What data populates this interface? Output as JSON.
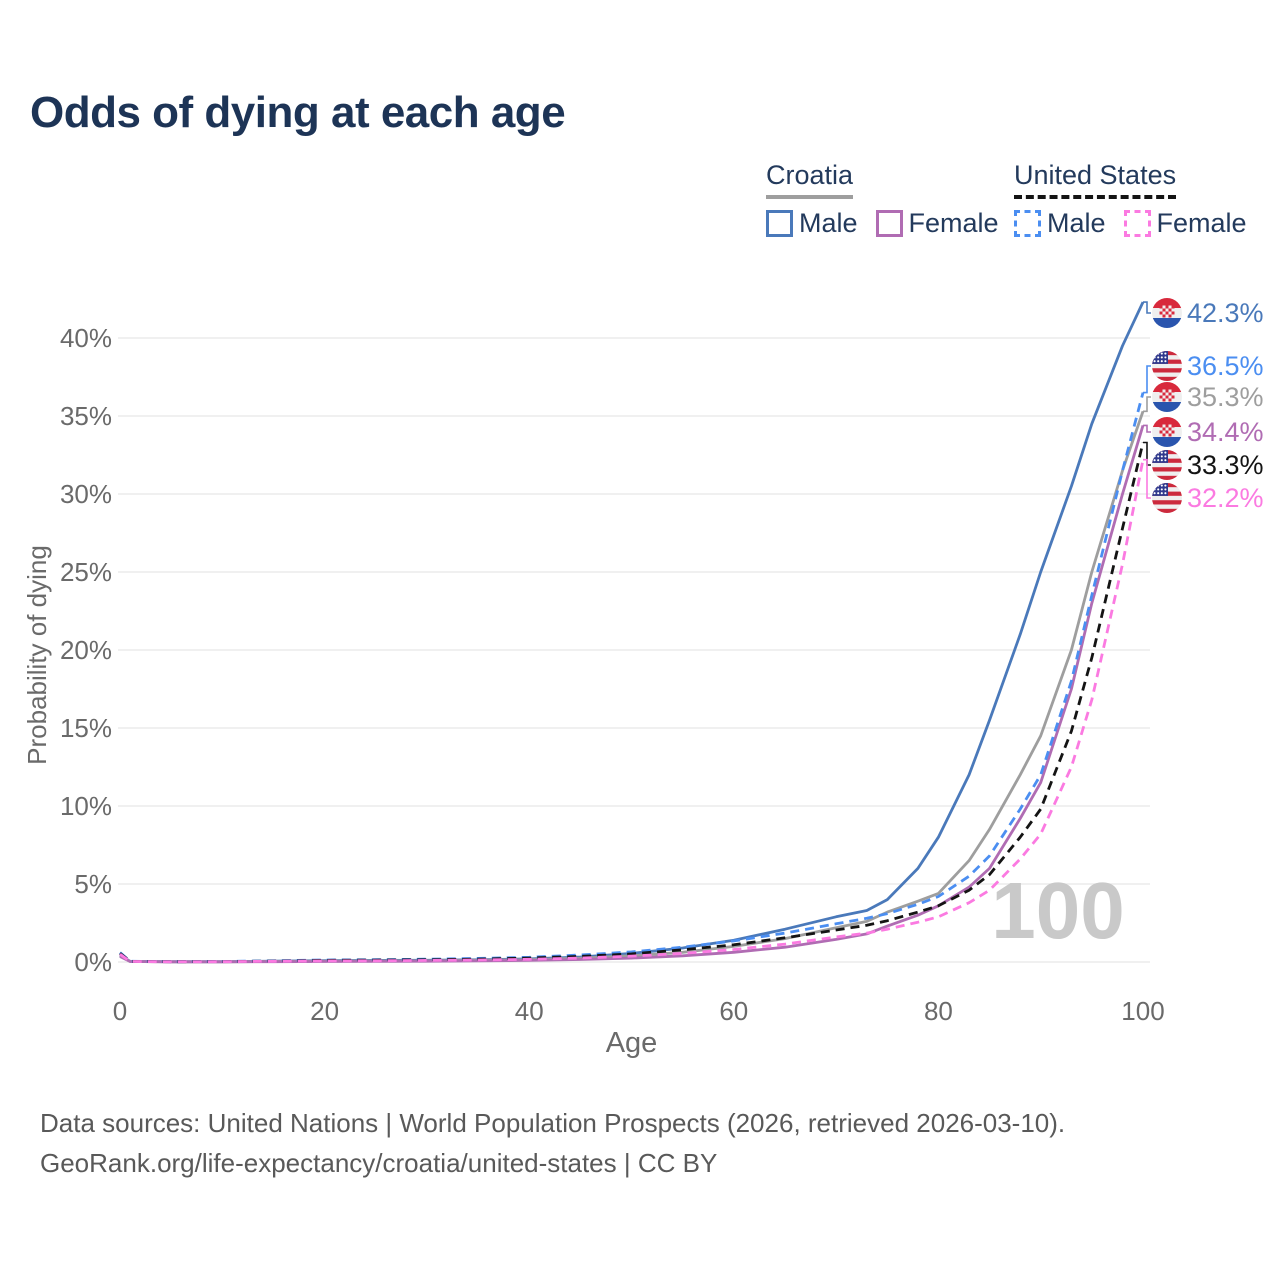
{
  "title": "Odds of dying at each age",
  "legend": {
    "croatia": {
      "title": "Croatia",
      "male": "Male",
      "female": "Female"
    },
    "us": {
      "title": "United States",
      "male": "Male",
      "female": "Female"
    }
  },
  "chart_data": {
    "type": "line",
    "title": "Odds of dying at each age",
    "xlabel": "Age",
    "ylabel": "Probability of dying",
    "x_ticks": [
      "0",
      "20",
      "40",
      "60",
      "80",
      "100"
    ],
    "y_ticks": [
      "0%",
      "5%",
      "10%",
      "15%",
      "20%",
      "25%",
      "30%",
      "35%",
      "40%"
    ],
    "xlim": [
      0,
      100
    ],
    "ylim_percent": [
      0,
      43
    ],
    "grid": "horizontal",
    "legend_position": "top-right",
    "age_indicator": "100",
    "ages": [
      0,
      1,
      5,
      10,
      15,
      20,
      25,
      30,
      35,
      40,
      45,
      50,
      55,
      60,
      65,
      70,
      73,
      75,
      78,
      80,
      83,
      85,
      88,
      90,
      93,
      95,
      98,
      100
    ],
    "series": [
      {
        "name": "Croatia Male",
        "country": "croatia",
        "sex": "male",
        "color": "#4a79ba",
        "dash": false,
        "end_label": "42.3%",
        "values": [
          0.45,
          0.04,
          0.02,
          0.02,
          0.05,
          0.09,
          0.1,
          0.11,
          0.14,
          0.2,
          0.32,
          0.55,
          0.9,
          1.4,
          2.1,
          2.9,
          3.3,
          4.0,
          6.0,
          8.0,
          12.0,
          15.5,
          21.0,
          25.0,
          30.5,
          34.5,
          39.5,
          42.3
        ]
      },
      {
        "name": "United States Male",
        "country": "us",
        "sex": "male",
        "color": "#4b8ef1",
        "dash": true,
        "end_label": "36.5%",
        "values": [
          0.6,
          0.045,
          0.02,
          0.03,
          0.08,
          0.13,
          0.15,
          0.18,
          0.23,
          0.3,
          0.45,
          0.65,
          0.95,
          1.35,
          1.85,
          2.45,
          2.8,
          3.1,
          3.7,
          4.2,
          5.5,
          6.8,
          9.8,
          12.0,
          18.0,
          23.5,
          31.5,
          36.5
        ]
      },
      {
        "name": "Croatia",
        "country": "croatia",
        "sex": "both",
        "color": "#9e9e9e",
        "dash": false,
        "end_label": "35.3%",
        "values": [
          0.4,
          0.035,
          0.015,
          0.015,
          0.04,
          0.06,
          0.07,
          0.08,
          0.11,
          0.15,
          0.25,
          0.4,
          0.62,
          1.0,
          1.5,
          2.2,
          2.6,
          3.2,
          3.9,
          4.4,
          6.5,
          8.5,
          12.0,
          14.5,
          20.0,
          25.0,
          31.5,
          35.3
        ]
      },
      {
        "name": "Croatia Female",
        "country": "croatia",
        "sex": "female",
        "color": "#b06cb3",
        "dash": false,
        "end_label": "34.4%",
        "values": [
          0.35,
          0.03,
          0.01,
          0.01,
          0.02,
          0.03,
          0.04,
          0.05,
          0.07,
          0.1,
          0.16,
          0.25,
          0.4,
          0.62,
          0.95,
          1.45,
          1.8,
          2.3,
          3.0,
          3.6,
          4.8,
          6.0,
          9.2,
          11.5,
          17.5,
          23.0,
          30.0,
          34.4
        ]
      },
      {
        "name": "United States",
        "country": "us",
        "sex": "both",
        "color": "#141414",
        "dash": true,
        "end_label": "33.3%",
        "values": [
          0.55,
          0.04,
          0.018,
          0.025,
          0.06,
          0.1,
          0.12,
          0.14,
          0.18,
          0.25,
          0.36,
          0.52,
          0.78,
          1.1,
          1.55,
          2.05,
          2.35,
          2.65,
          3.2,
          3.6,
          4.6,
          5.6,
          8.0,
          9.8,
          14.8,
          19.5,
          27.8,
          33.3
        ]
      },
      {
        "name": "United States Female",
        "country": "us",
        "sex": "female",
        "color": "#fb7ae1",
        "dash": true,
        "end_label": "32.2%",
        "values": [
          0.5,
          0.035,
          0.015,
          0.02,
          0.045,
          0.07,
          0.08,
          0.1,
          0.13,
          0.17,
          0.25,
          0.38,
          0.55,
          0.8,
          1.15,
          1.6,
          1.85,
          2.1,
          2.55,
          2.9,
          3.8,
          4.6,
          6.6,
          8.2,
          12.5,
          16.8,
          25.5,
          32.2
        ]
      }
    ]
  },
  "footer": {
    "line1": "Data sources: United Nations | World Population Prospects (2026, retrieved 2026-03-10).",
    "line2": "GeoRank.org/life-expectancy/croatia/united-states | CC BY"
  },
  "colors": {
    "title_text": "#1d3456",
    "axis_text": "#6a6a6a",
    "gridline": "#ececec",
    "age_counter": "#c9c9c9",
    "croatia_male": "#4a79ba",
    "croatia_both": "#9e9e9e",
    "croatia_female": "#b06cb3",
    "us_male": "#4b8ef1",
    "us_both": "#141414",
    "us_female": "#fb7ae1"
  }
}
